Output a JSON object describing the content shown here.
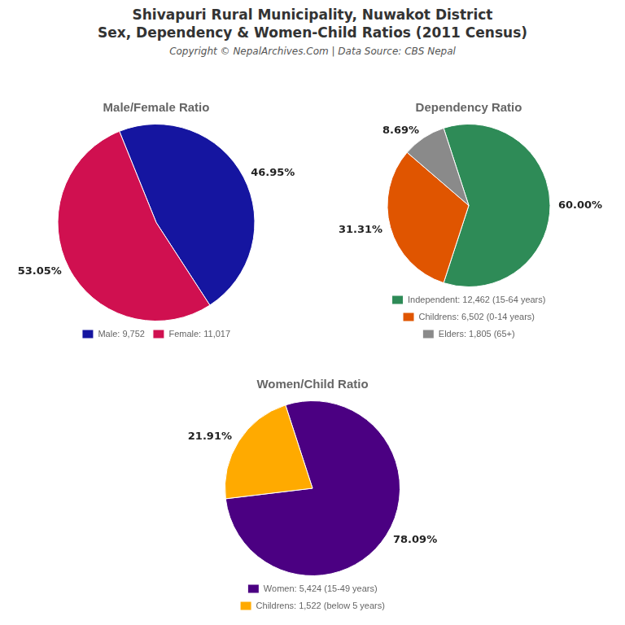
{
  "title": "Shivapuri Rural Municipality, Nuwakot District",
  "subtitle": "Sex, Dependency & Women-Child Ratios (2011 Census)",
  "annotations": [
    "Copyright © NepalArchives.Com | Data Source: CBS Nepal"
  ],
  "chart_data": [
    {
      "type": "pie",
      "title": "Male/Female Ratio",
      "categories": [
        "Male: 9,752",
        "Female: 11,017"
      ],
      "values": [
        46.95,
        53.05
      ],
      "value_labels": [
        "46.95%",
        "53.05%"
      ],
      "colors": [
        "#1515a0",
        "#d01050"
      ],
      "data_labels": true,
      "legend": "bottom"
    },
    {
      "type": "pie",
      "title": "Dependency Ratio",
      "categories": [
        "Independent: 12,462 (15-64 years)",
        "Childrens: 6,502 (0-14 years)",
        "Elders: 1,805 (65+)"
      ],
      "values": [
        60.0,
        31.31,
        8.69
      ],
      "value_labels": [
        "60.00%",
        "31.31%",
        "8.69%"
      ],
      "colors": [
        "#2e8b57",
        "#e05500",
        "#8a8a8a"
      ],
      "data_labels": true,
      "legend": "bottom"
    },
    {
      "type": "pie",
      "title": "Women/Child Ratio",
      "categories": [
        "Women: 5,424 (15-49 years)",
        "Childrens: 1,522 (below 5 years)"
      ],
      "values": [
        78.09,
        21.91
      ],
      "value_labels": [
        "78.09%",
        "21.91%"
      ],
      "colors": [
        "#4b0082",
        "#ffaa00"
      ],
      "data_labels": true,
      "legend": "bottom"
    }
  ]
}
